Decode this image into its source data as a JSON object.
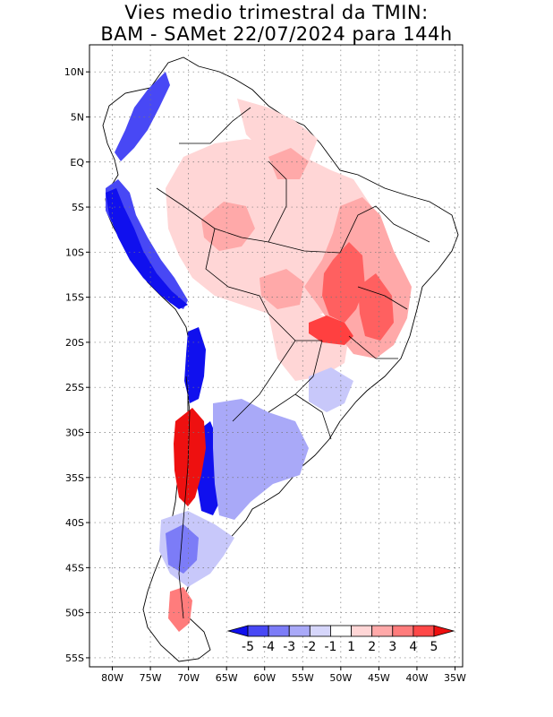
{
  "title": {
    "line1": "Vies medio trimestral da TMIN:",
    "line2": "BAM - SAMet 22/07/2024  para 144h"
  },
  "map": {
    "lon_range": [
      -83,
      -34
    ],
    "lat_range": [
      -56,
      13
    ],
    "lat_ticks": [
      "10N",
      "5N",
      "EQ",
      "5S",
      "10S",
      "15S",
      "20S",
      "25S",
      "30S",
      "35S",
      "40S",
      "45S",
      "50S",
      "55S"
    ],
    "lat_values": [
      10,
      5,
      0,
      -5,
      -10,
      -15,
      -20,
      -25,
      -30,
      -35,
      -40,
      -45,
      -50,
      -55
    ],
    "lon_ticks": [
      "80W",
      "75W",
      "70W",
      "65W",
      "60W",
      "55W",
      "50W",
      "45W",
      "40W",
      "35W"
    ],
    "lon_values": [
      -80,
      -75,
      -70,
      -65,
      -60,
      -55,
      -50,
      -45,
      -40,
      -35
    ],
    "grid": "dotted"
  },
  "colorbar": {
    "labels": [
      "-5",
      "-4",
      "-3",
      "-2",
      "-1",
      "1",
      "2",
      "3",
      "4",
      "5"
    ],
    "colors": [
      "#1010ee",
      "#4848f5",
      "#7c7cf7",
      "#a9a9f8",
      "#d6d6fb",
      "#ffffff",
      "#ffd6d6",
      "#ffa9a9",
      "#ff7c7c",
      "#ff4848",
      "#ee1010"
    ]
  },
  "colors": {
    "blue_strong": "#1e2ef0",
    "blue_mid": "#7c7cf7",
    "blue_light": "#c8c8fa",
    "red_strong": "#f01a1a",
    "red_mid": "#ff7070",
    "red_light": "#ffc8c8"
  }
}
